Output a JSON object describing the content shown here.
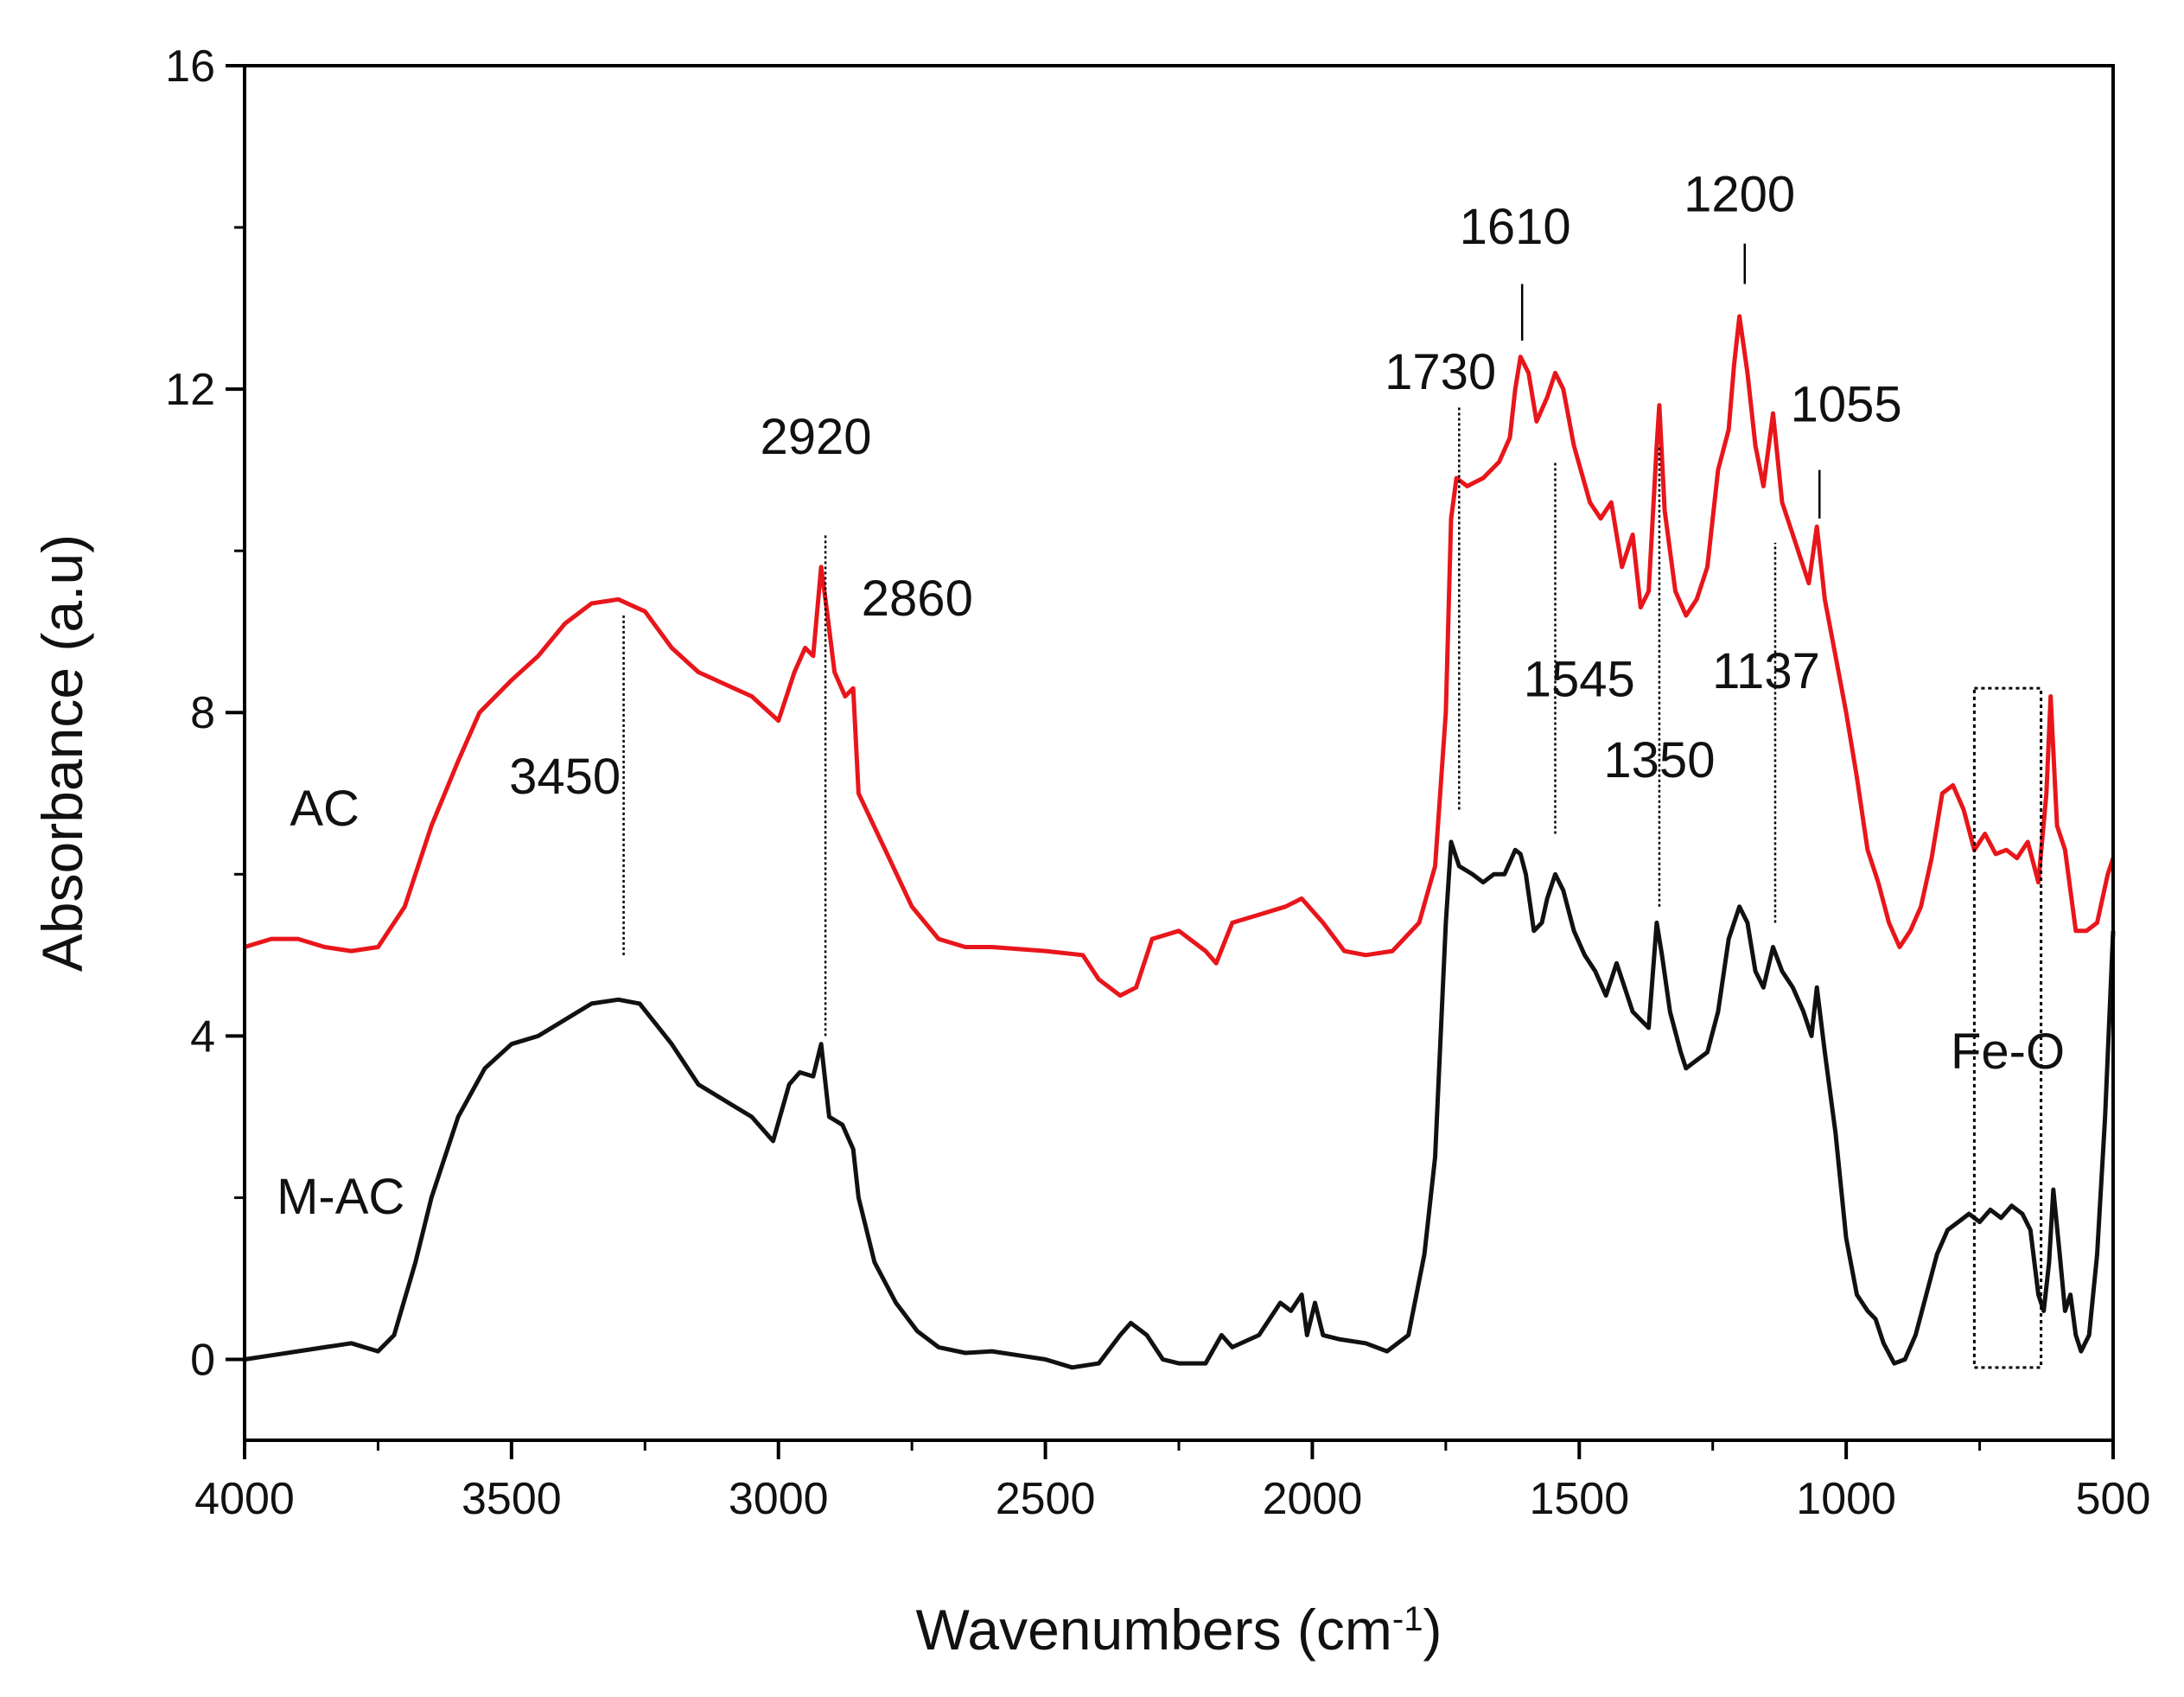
{
  "chart_data": {
    "type": "line",
    "title": "",
    "xlabel": "Wavenumbers (cm",
    "xlabel_superscript": "-1",
    "xlabel_suffix": ")",
    "ylabel": "Absorbance (a.u)",
    "xlim": [
      4000,
      500
    ],
    "ylim": [
      -1,
      16
    ],
    "x_reversed": true,
    "xticks": [
      4000,
      3500,
      3000,
      2500,
      2000,
      1500,
      1000,
      500
    ],
    "xtick_labels": [
      "4000",
      "3500",
      "3000",
      "2500",
      "2000",
      "1500",
      "1000",
      "500"
    ],
    "yticks": [
      0,
      4,
      8,
      12,
      16
    ],
    "ytick_labels": [
      "0",
      "4",
      "8",
      "12",
      "16"
    ],
    "grid": false,
    "series": [
      {
        "name": "AC",
        "label": "AC",
        "color": "#e8161b",
        "points": [
          [
            4000,
            5.1
          ],
          [
            3950,
            5.2
          ],
          [
            3900,
            5.2
          ],
          [
            3850,
            5.1
          ],
          [
            3800,
            5.05
          ],
          [
            3750,
            5.1
          ],
          [
            3700,
            5.6
          ],
          [
            3650,
            6.6
          ],
          [
            3600,
            7.4
          ],
          [
            3560,
            8.0
          ],
          [
            3500,
            8.4
          ],
          [
            3450,
            8.7
          ],
          [
            3400,
            9.1
          ],
          [
            3350,
            9.35
          ],
          [
            3300,
            9.4
          ],
          [
            3250,
            9.25
          ],
          [
            3200,
            8.8
          ],
          [
            3150,
            8.5
          ],
          [
            3100,
            8.35
          ],
          [
            3050,
            8.2
          ],
          [
            3000,
            7.9
          ],
          [
            2970,
            8.5
          ],
          [
            2950,
            8.8
          ],
          [
            2935,
            8.7
          ],
          [
            2920,
            9.8
          ],
          [
            2910,
            9.3
          ],
          [
            2895,
            8.5
          ],
          [
            2875,
            8.2
          ],
          [
            2860,
            8.3
          ],
          [
            2850,
            7.0
          ],
          [
            2800,
            6.3
          ],
          [
            2750,
            5.6
          ],
          [
            2700,
            5.2
          ],
          [
            2650,
            5.1
          ],
          [
            2600,
            5.1
          ],
          [
            2500,
            5.05
          ],
          [
            2430,
            5.0
          ],
          [
            2400,
            4.7
          ],
          [
            2360,
            4.5
          ],
          [
            2330,
            4.6
          ],
          [
            2300,
            5.2
          ],
          [
            2250,
            5.3
          ],
          [
            2200,
            5.05
          ],
          [
            2180,
            4.9
          ],
          [
            2150,
            5.4
          ],
          [
            2100,
            5.5
          ],
          [
            2050,
            5.6
          ],
          [
            2020,
            5.7
          ],
          [
            1980,
            5.4
          ],
          [
            1940,
            5.05
          ],
          [
            1900,
            5.0
          ],
          [
            1850,
            5.05
          ],
          [
            1800,
            5.4
          ],
          [
            1770,
            6.1
          ],
          [
            1750,
            8.0
          ],
          [
            1740,
            10.4
          ],
          [
            1730,
            10.9
          ],
          [
            1710,
            10.8
          ],
          [
            1680,
            10.9
          ],
          [
            1650,
            11.1
          ],
          [
            1630,
            11.4
          ],
          [
            1620,
            12.0
          ],
          [
            1610,
            12.4
          ],
          [
            1595,
            12.2
          ],
          [
            1580,
            11.6
          ],
          [
            1560,
            11.9
          ],
          [
            1545,
            12.2
          ],
          [
            1530,
            12.0
          ],
          [
            1510,
            11.3
          ],
          [
            1480,
            10.6
          ],
          [
            1460,
            10.4
          ],
          [
            1440,
            10.6
          ],
          [
            1420,
            9.8
          ],
          [
            1400,
            10.2
          ],
          [
            1385,
            9.3
          ],
          [
            1370,
            9.5
          ],
          [
            1355,
            11.3
          ],
          [
            1350,
            11.8
          ],
          [
            1340,
            10.5
          ],
          [
            1320,
            9.5
          ],
          [
            1300,
            9.2
          ],
          [
            1280,
            9.4
          ],
          [
            1260,
            9.8
          ],
          [
            1240,
            11.0
          ],
          [
            1220,
            11.5
          ],
          [
            1210,
            12.3
          ],
          [
            1200,
            12.9
          ],
          [
            1185,
            12.2
          ],
          [
            1170,
            11.3
          ],
          [
            1155,
            10.8
          ],
          [
            1137,
            11.7
          ],
          [
            1120,
            10.6
          ],
          [
            1100,
            10.2
          ],
          [
            1080,
            9.8
          ],
          [
            1070,
            9.6
          ],
          [
            1055,
            10.3
          ],
          [
            1040,
            9.4
          ],
          [
            1020,
            8.7
          ],
          [
            1000,
            8.0
          ],
          [
            980,
            7.2
          ],
          [
            960,
            6.3
          ],
          [
            940,
            5.9
          ],
          [
            920,
            5.4
          ],
          [
            900,
            5.1
          ],
          [
            880,
            5.3
          ],
          [
            860,
            5.6
          ],
          [
            840,
            6.2
          ],
          [
            820,
            7.0
          ],
          [
            800,
            7.1
          ],
          [
            780,
            6.8
          ],
          [
            760,
            6.3
          ],
          [
            740,
            6.5
          ],
          [
            720,
            6.25
          ],
          [
            700,
            6.3
          ],
          [
            680,
            6.2
          ],
          [
            660,
            6.4
          ],
          [
            640,
            5.9
          ],
          [
            625,
            7.0
          ],
          [
            617,
            8.2
          ],
          [
            605,
            6.6
          ],
          [
            590,
            6.3
          ],
          [
            570,
            5.3
          ],
          [
            550,
            5.3
          ],
          [
            530,
            5.4
          ],
          [
            510,
            6.0
          ],
          [
            500,
            6.2
          ]
        ]
      },
      {
        "name": "M-AC",
        "label": "M-AC",
        "color": "#111111",
        "points": [
          [
            4000,
            0.0
          ],
          [
            3950,
            0.05
          ],
          [
            3900,
            0.1
          ],
          [
            3850,
            0.15
          ],
          [
            3800,
            0.2
          ],
          [
            3750,
            0.1
          ],
          [
            3720,
            0.3
          ],
          [
            3680,
            1.2
          ],
          [
            3650,
            2.0
          ],
          [
            3600,
            3.0
          ],
          [
            3550,
            3.6
          ],
          [
            3500,
            3.9
          ],
          [
            3450,
            4.0
          ],
          [
            3400,
            4.2
          ],
          [
            3350,
            4.4
          ],
          [
            3300,
            4.45
          ],
          [
            3260,
            4.4
          ],
          [
            3200,
            3.9
          ],
          [
            3150,
            3.4
          ],
          [
            3100,
            3.2
          ],
          [
            3050,
            3.0
          ],
          [
            3010,
            2.7
          ],
          [
            2980,
            3.4
          ],
          [
            2960,
            3.55
          ],
          [
            2935,
            3.5
          ],
          [
            2920,
            3.9
          ],
          [
            2905,
            3.0
          ],
          [
            2880,
            2.9
          ],
          [
            2860,
            2.6
          ],
          [
            2850,
            2.0
          ],
          [
            2820,
            1.2
          ],
          [
            2780,
            0.7
          ],
          [
            2740,
            0.35
          ],
          [
            2700,
            0.15
          ],
          [
            2650,
            0.08
          ],
          [
            2600,
            0.1
          ],
          [
            2550,
            0.05
          ],
          [
            2500,
            0.0
          ],
          [
            2450,
            -0.1
          ],
          [
            2400,
            -0.05
          ],
          [
            2360,
            0.3
          ],
          [
            2340,
            0.45
          ],
          [
            2310,
            0.3
          ],
          [
            2280,
            0.0
          ],
          [
            2250,
            -0.05
          ],
          [
            2200,
            -0.05
          ],
          [
            2170,
            0.3
          ],
          [
            2150,
            0.15
          ],
          [
            2100,
            0.3
          ],
          [
            2060,
            0.7
          ],
          [
            2040,
            0.6
          ],
          [
            2020,
            0.8
          ],
          [
            2010,
            0.3
          ],
          [
            1995,
            0.7
          ],
          [
            1980,
            0.3
          ],
          [
            1950,
            0.25
          ],
          [
            1900,
            0.2
          ],
          [
            1860,
            0.1
          ],
          [
            1820,
            0.3
          ],
          [
            1790,
            1.3
          ],
          [
            1770,
            2.5
          ],
          [
            1750,
            5.4
          ],
          [
            1740,
            6.4
          ],
          [
            1725,
            6.1
          ],
          [
            1700,
            6.0
          ],
          [
            1680,
            5.9
          ],
          [
            1660,
            6.0
          ],
          [
            1640,
            6.0
          ],
          [
            1620,
            6.3
          ],
          [
            1610,
            6.25
          ],
          [
            1600,
            6.0
          ],
          [
            1585,
            5.3
          ],
          [
            1570,
            5.4
          ],
          [
            1560,
            5.7
          ],
          [
            1545,
            6.0
          ],
          [
            1530,
            5.8
          ],
          [
            1510,
            5.3
          ],
          [
            1490,
            5.0
          ],
          [
            1470,
            4.8
          ],
          [
            1450,
            4.5
          ],
          [
            1430,
            4.9
          ],
          [
            1415,
            4.6
          ],
          [
            1400,
            4.3
          ],
          [
            1385,
            4.2
          ],
          [
            1370,
            4.1
          ],
          [
            1355,
            5.4
          ],
          [
            1345,
            5.0
          ],
          [
            1330,
            4.3
          ],
          [
            1310,
            3.8
          ],
          [
            1300,
            3.6
          ],
          [
            1280,
            3.7
          ],
          [
            1260,
            3.8
          ],
          [
            1240,
            4.3
          ],
          [
            1220,
            5.2
          ],
          [
            1210,
            5.4
          ],
          [
            1200,
            5.6
          ],
          [
            1185,
            5.4
          ],
          [
            1170,
            4.8
          ],
          [
            1155,
            4.6
          ],
          [
            1137,
            5.1
          ],
          [
            1120,
            4.8
          ],
          [
            1100,
            4.6
          ],
          [
            1080,
            4.3
          ],
          [
            1065,
            4.0
          ],
          [
            1055,
            4.6
          ],
          [
            1040,
            3.8
          ],
          [
            1020,
            2.8
          ],
          [
            1000,
            1.5
          ],
          [
            980,
            0.8
          ],
          [
            960,
            0.6
          ],
          [
            945,
            0.5
          ],
          [
            930,
            0.2
          ],
          [
            910,
            -0.05
          ],
          [
            890,
            0.0
          ],
          [
            870,
            0.3
          ],
          [
            850,
            0.8
          ],
          [
            830,
            1.3
          ],
          [
            810,
            1.6
          ],
          [
            790,
            1.7
          ],
          [
            770,
            1.8
          ],
          [
            750,
            1.7
          ],
          [
            730,
            1.85
          ],
          [
            710,
            1.75
          ],
          [
            690,
            1.9
          ],
          [
            670,
            1.8
          ],
          [
            655,
            1.6
          ],
          [
            640,
            0.8
          ],
          [
            630,
            0.6
          ],
          [
            620,
            1.2
          ],
          [
            612,
            2.1
          ],
          [
            600,
            1.3
          ],
          [
            590,
            0.6
          ],
          [
            580,
            0.8
          ],
          [
            570,
            0.3
          ],
          [
            560,
            0.1
          ],
          [
            545,
            0.3
          ],
          [
            530,
            1.3
          ],
          [
            515,
            3.0
          ],
          [
            500,
            5.3
          ]
        ]
      }
    ],
    "annotations": [
      {
        "text": "3450",
        "x": 3400,
        "y": 7.0,
        "line": {
          "x": 3290,
          "y1": 5.0,
          "y2": 9.2,
          "style": "dotted"
        }
      },
      {
        "text": "2920",
        "x": 2930,
        "y": 11.2,
        "line": {
          "x": 2912,
          "y1": 4.0,
          "y2": 10.2,
          "style": "dotted"
        }
      },
      {
        "text": "2860",
        "x": 2740,
        "y": 9.2,
        "line": null
      },
      {
        "text": "1730",
        "x": 1760,
        "y": 12.0,
        "line": {
          "x": 1725,
          "y1": 6.8,
          "y2": 11.8,
          "style": "dotted"
        }
      },
      {
        "text": "1610",
        "x": 1620,
        "y": 13.8,
        "line": {
          "x": 1607,
          "y1": 12.6,
          "y2": 13.3,
          "style": "solid"
        }
      },
      {
        "text": "1545",
        "x": 1500,
        "y": 8.2,
        "line": {
          "x": 1545,
          "y1": 6.5,
          "y2": 11.1,
          "style": "dotted"
        }
      },
      {
        "text": "1350",
        "x": 1350,
        "y": 7.2,
        "line": {
          "x": 1350,
          "y1": 5.6,
          "y2": 11.3,
          "style": "dotted"
        }
      },
      {
        "text": "1200",
        "x": 1200,
        "y": 14.2,
        "line": {
          "x": 1190,
          "y1": 13.3,
          "y2": 13.8,
          "style": "solid"
        }
      },
      {
        "text": "1137",
        "x": 1150,
        "y": 8.3,
        "line": {
          "x": 1133,
          "y1": 5.4,
          "y2": 10.1,
          "style": "dotted"
        }
      },
      {
        "text": "1055",
        "x": 1000,
        "y": 11.6,
        "line": {
          "x": 1050,
          "y1": 10.4,
          "y2": 11.0,
          "style": "solid"
        }
      }
    ],
    "region_annotation": {
      "text": "Fe-O",
      "x_from": 760,
      "x_to": 635,
      "y_from": -0.1,
      "y_to": 8.3,
      "style": "dotted"
    },
    "series_labels": [
      {
        "text": "AC",
        "x": 3850,
        "y": 6.6
      },
      {
        "text": "M-AC",
        "x": 3820,
        "y": 1.8
      }
    ]
  }
}
